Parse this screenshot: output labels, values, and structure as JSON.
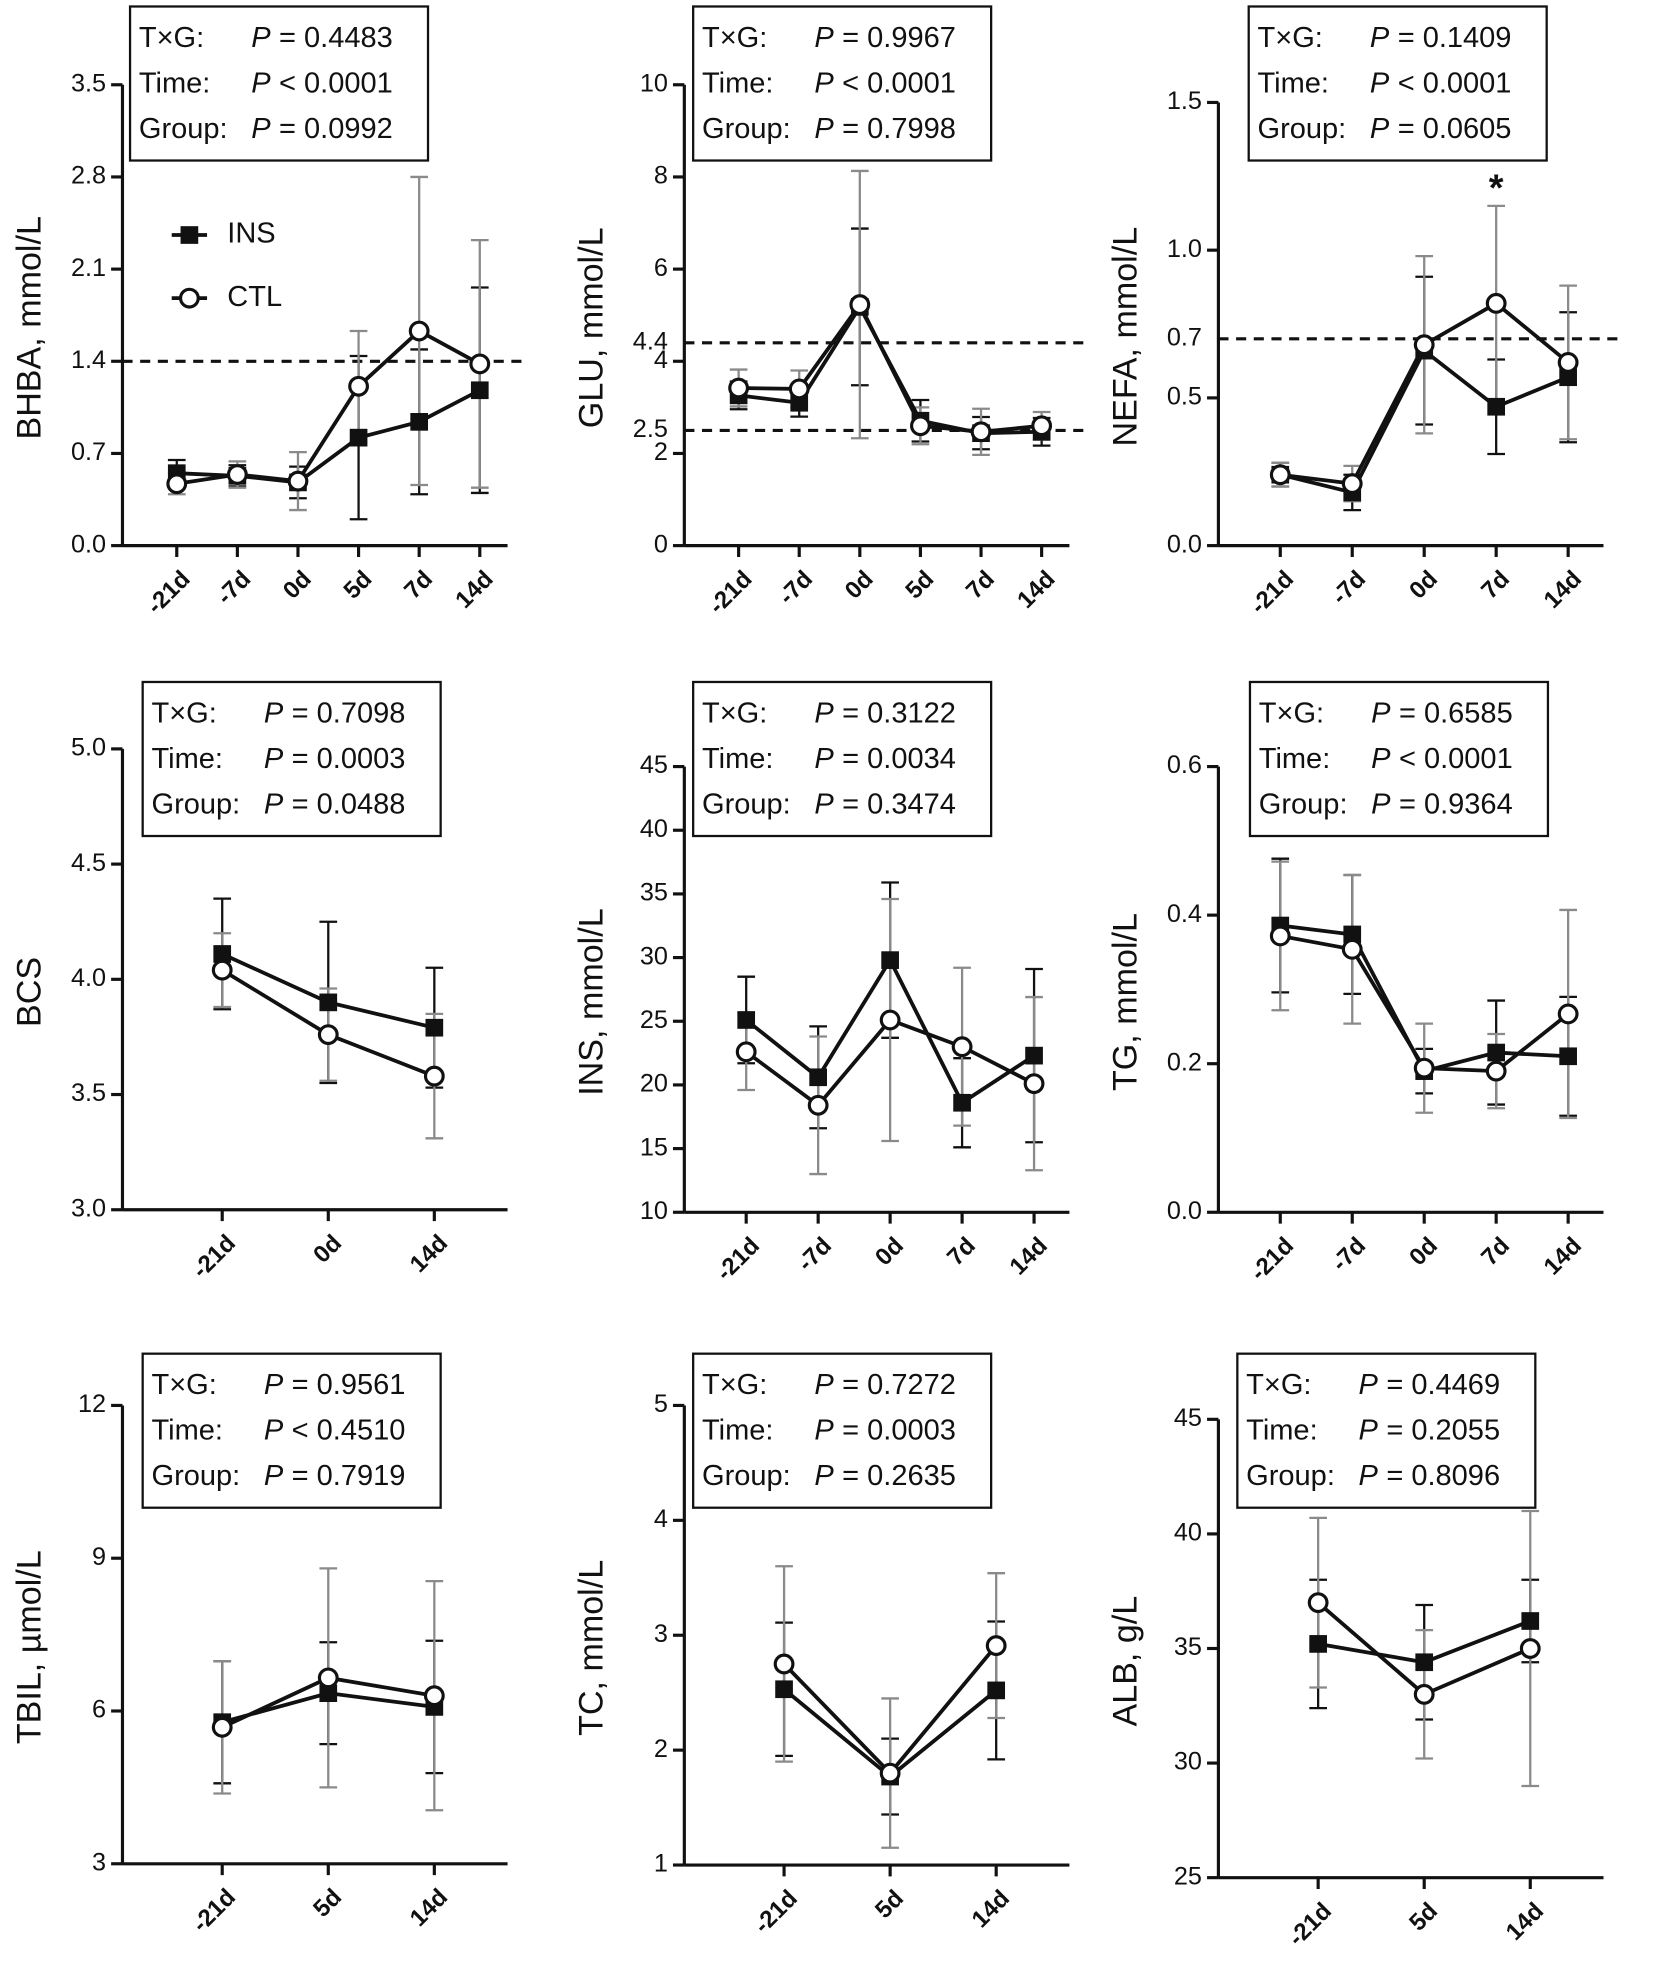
{
  "chart_data": [
    {
      "type": "line",
      "ylabel": "BHBA, mmol/L",
      "categories": [
        "-21d",
        "-7d",
        "0d",
        "5d",
        "7d",
        "14d"
      ],
      "ylim": [
        0,
        3.5
      ],
      "yticks": [
        {
          "value": 0,
          "label": "0.0"
        },
        0.7,
        1.4,
        2.1,
        2.8,
        3.5
      ],
      "reference_lines": [
        1.4
      ],
      "legend": true,
      "stats": [
        [
          "T×G:",
          "P",
          "= 0.4483"
        ],
        [
          "Time:",
          "P",
          "< 0.0001"
        ],
        [
          "Group:",
          "P",
          "= 0.0992"
        ]
      ],
      "series": [
        {
          "name": "INS",
          "marker": "square",
          "color": "#111111",
          "error_color": "#111111",
          "values": [
            0.55,
            0.53,
            0.48,
            0.82,
            0.94,
            1.18
          ],
          "errors": [
            0.1,
            0.08,
            0.12,
            0.62,
            0.55,
            0.78
          ]
        },
        {
          "name": "CTL",
          "marker": "circle",
          "color": "#111111",
          "error_color": "#8a8a8a",
          "values": [
            0.47,
            0.54,
            0.49,
            1.21,
            1.63,
            1.38
          ],
          "errors": [
            0.08,
            0.1,
            0.22,
            0.42,
            1.17,
            0.94
          ]
        }
      ]
    },
    {
      "type": "line",
      "ylabel": "GLU, mmol/L",
      "categories": [
        "-21d",
        "-7d",
        "0d",
        "5d",
        "7d",
        "14d"
      ],
      "ylim": [
        0,
        10
      ],
      "yticks": [
        0,
        2,
        4,
        6,
        8,
        10
      ],
      "reference_lines": [
        4.4,
        2.5
      ],
      "stats": [
        [
          "T×G:",
          "P",
          "= 0.9967"
        ],
        [
          "Time:",
          "P",
          "< 0.0001"
        ],
        [
          "Group:",
          "P",
          "= 0.7998"
        ]
      ],
      "series": [
        {
          "marker": "square",
          "color": "#111111",
          "error_color": "#111111",
          "values": [
            3.26,
            3.1,
            5.18,
            2.71,
            2.44,
            2.47
          ],
          "errors": [
            0.3,
            0.3,
            1.7,
            0.45,
            0.35,
            0.3
          ]
        },
        {
          "marker": "circle",
          "color": "#111111",
          "error_color": "#8a8a8a",
          "values": [
            3.42,
            3.4,
            5.23,
            2.6,
            2.47,
            2.6
          ],
          "errors": [
            0.4,
            0.4,
            2.9,
            0.4,
            0.5,
            0.3
          ]
        }
      ]
    },
    {
      "type": "line",
      "ylabel": "NEFA, mmol/L",
      "categories": [
        "-21d",
        "-7d",
        "0d",
        "7d",
        "14d"
      ],
      "ylim": [
        0,
        1.5
      ],
      "yticks": [
        {
          "value": 0,
          "label": "0.0"
        },
        0.5,
        {
          "value": 1,
          "label": "1.0"
        },
        1.5
      ],
      "reference_lines": [
        0.7
      ],
      "annotations": [
        {
          "text": "*",
          "x": "7d"
        }
      ],
      "stats": [
        [
          "T×G:",
          "P",
          "= 0.1409"
        ],
        [
          "Time:",
          "P",
          "< 0.0001"
        ],
        [
          "Group:",
          "P",
          "= 0.0605"
        ]
      ],
      "series": [
        {
          "marker": "square",
          "color": "#111111",
          "error_color": "#111111",
          "values": [
            0.24,
            0.18,
            0.66,
            0.47,
            0.57
          ],
          "errors": [
            0.04,
            0.06,
            0.25,
            0.16,
            0.22
          ]
        },
        {
          "marker": "circle",
          "color": "#111111",
          "error_color": "#8a8a8a",
          "values": [
            0.24,
            0.21,
            0.68,
            0.82,
            0.62
          ],
          "errors": [
            0.04,
            0.06,
            0.3,
            0.33,
            0.26
          ]
        }
      ]
    },
    {
      "type": "line",
      "ylabel": "BCS",
      "categories": [
        "-21d",
        "0d",
        "14d"
      ],
      "ylim": [
        3,
        5
      ],
      "yticks": [
        {
          "value": 3,
          "label": "3.0"
        },
        3.5,
        {
          "value": 4,
          "label": "4.0"
        },
        4.5,
        {
          "value": 5,
          "label": "5.0"
        }
      ],
      "stats": [
        [
          "T×G:",
          "P",
          "= 0.7098"
        ],
        [
          "Time:",
          "P",
          "= 0.0003"
        ],
        [
          "Group:",
          "P",
          "= 0.0488"
        ]
      ],
      "series": [
        {
          "marker": "square",
          "color": "#111111",
          "error_color": "#111111",
          "values": [
            4.11,
            3.9,
            3.79
          ],
          "errors": [
            0.24,
            0.35,
            0.26
          ]
        },
        {
          "marker": "circle",
          "color": "#111111",
          "error_color": "#8a8a8a",
          "values": [
            4.04,
            3.76,
            3.58
          ],
          "errors": [
            0.16,
            0.2,
            0.27
          ]
        }
      ]
    },
    {
      "type": "line",
      "ylabel": "INS, mmol/L",
      "categories": [
        "-21d",
        "-7d",
        "0d",
        "7d",
        "14d"
      ],
      "ylim": [
        10,
        45
      ],
      "yticks": [
        10,
        15,
        20,
        25,
        30,
        35,
        40,
        45
      ],
      "stats": [
        [
          "T×G:",
          "P",
          "= 0.3122"
        ],
        [
          "Time:",
          "P",
          "= 0.0034"
        ],
        [
          "Group:",
          "P",
          "= 0.3474"
        ]
      ],
      "series": [
        {
          "marker": "square",
          "color": "#111111",
          "error_color": "#111111",
          "values": [
            25.1,
            20.6,
            29.8,
            18.6,
            22.3
          ],
          "errors": [
            3.4,
            4,
            6.1,
            3.5,
            6.8
          ]
        },
        {
          "marker": "circle",
          "color": "#111111",
          "error_color": "#8a8a8a",
          "values": [
            22.6,
            18.4,
            25.1,
            23,
            20.1
          ],
          "errors": [
            3,
            5.4,
            9.5,
            6.2,
            6.8
          ]
        }
      ]
    },
    {
      "type": "line",
      "ylabel": "TG, mmol/L",
      "categories": [
        "-21d",
        "-7d",
        "0d",
        "7d",
        "14d"
      ],
      "ylim": [
        0,
        0.6
      ],
      "yticks": [
        {
          "value": 0,
          "label": "0.0"
        },
        0.2,
        0.4,
        0.6
      ],
      "stats": [
        [
          "T×G:",
          "P",
          "= 0.6585"
        ],
        [
          "Time:",
          "P",
          "< 0.0001"
        ],
        [
          "Group:",
          "P",
          "= 0.9364"
        ]
      ],
      "series": [
        {
          "marker": "square",
          "color": "#111111",
          "error_color": "#111111",
          "values": [
            0.386,
            0.374,
            0.19,
            0.215,
            0.21
          ],
          "errors": [
            0.09,
            0.08,
            0.03,
            0.07,
            0.08
          ]
        },
        {
          "marker": "circle",
          "color": "#111111",
          "error_color": "#8a8a8a",
          "values": [
            0.372,
            0.354,
            0.194,
            0.19,
            0.267
          ],
          "errors": [
            0.1,
            0.1,
            0.06,
            0.05,
            0.14
          ]
        }
      ]
    },
    {
      "type": "line",
      "ylabel": "TBIL, µmol/L",
      "categories": [
        "-21d",
        "5d",
        "14d"
      ],
      "ylim": [
        3,
        12
      ],
      "yticks": [
        3,
        6,
        9,
        12
      ],
      "stats": [
        [
          "T×G:",
          "P",
          "= 0.9561"
        ],
        [
          "Time:",
          "P",
          "< 0.4510"
        ],
        [
          "Group:",
          "P",
          "= 0.7919"
        ]
      ],
      "series": [
        {
          "marker": "square",
          "color": "#111111",
          "error_color": "#111111",
          "values": [
            5.78,
            6.35,
            6.08
          ],
          "errors": [
            1.2,
            1,
            1.3
          ]
        },
        {
          "marker": "circle",
          "color": "#111111",
          "error_color": "#8a8a8a",
          "values": [
            5.68,
            6.65,
            6.3
          ],
          "errors": [
            1.3,
            2.15,
            2.25
          ]
        }
      ]
    },
    {
      "type": "line",
      "ylabel": "TC, mmol/L",
      "categories": [
        "-21d",
        "5d",
        "14d"
      ],
      "ylim": [
        1,
        5
      ],
      "yticks": [
        1,
        2,
        3,
        4,
        5
      ],
      "stats": [
        [
          "T×G:",
          "P",
          "= 0.7272"
        ],
        [
          "Time:",
          "P",
          "= 0.0003"
        ],
        [
          "Group:",
          "P",
          "= 0.2635"
        ]
      ],
      "series": [
        {
          "marker": "square",
          "color": "#111111",
          "error_color": "#111111",
          "values": [
            2.53,
            1.77,
            2.52
          ],
          "errors": [
            0.58,
            0.33,
            0.6
          ]
        },
        {
          "marker": "circle",
          "color": "#111111",
          "error_color": "#8a8a8a",
          "values": [
            2.75,
            1.8,
            2.91
          ],
          "errors": [
            0.85,
            0.65,
            0.63
          ]
        }
      ]
    },
    {
      "type": "line",
      "ylabel": "ALB, g/L",
      "categories": [
        "-21d",
        "5d",
        "14d"
      ],
      "ylim": [
        25,
        45
      ],
      "yticks": [
        25,
        30,
        35,
        40,
        45
      ],
      "stats": [
        [
          "T×G:",
          "P",
          "= 0.4469"
        ],
        [
          "Time:",
          "P",
          "= 0.2055"
        ],
        [
          "Group:",
          "P",
          "= 0.8096"
        ]
      ],
      "series": [
        {
          "marker": "square",
          "color": "#111111",
          "error_color": "#111111",
          "values": [
            35.2,
            34.4,
            36.2
          ],
          "errors": [
            2.8,
            2.5,
            1.8
          ]
        },
        {
          "marker": "circle",
          "color": "#111111",
          "error_color": "#8a8a8a",
          "values": [
            37,
            33,
            35
          ],
          "errors": [
            3.7,
            2.8,
            6
          ]
        }
      ]
    }
  ]
}
